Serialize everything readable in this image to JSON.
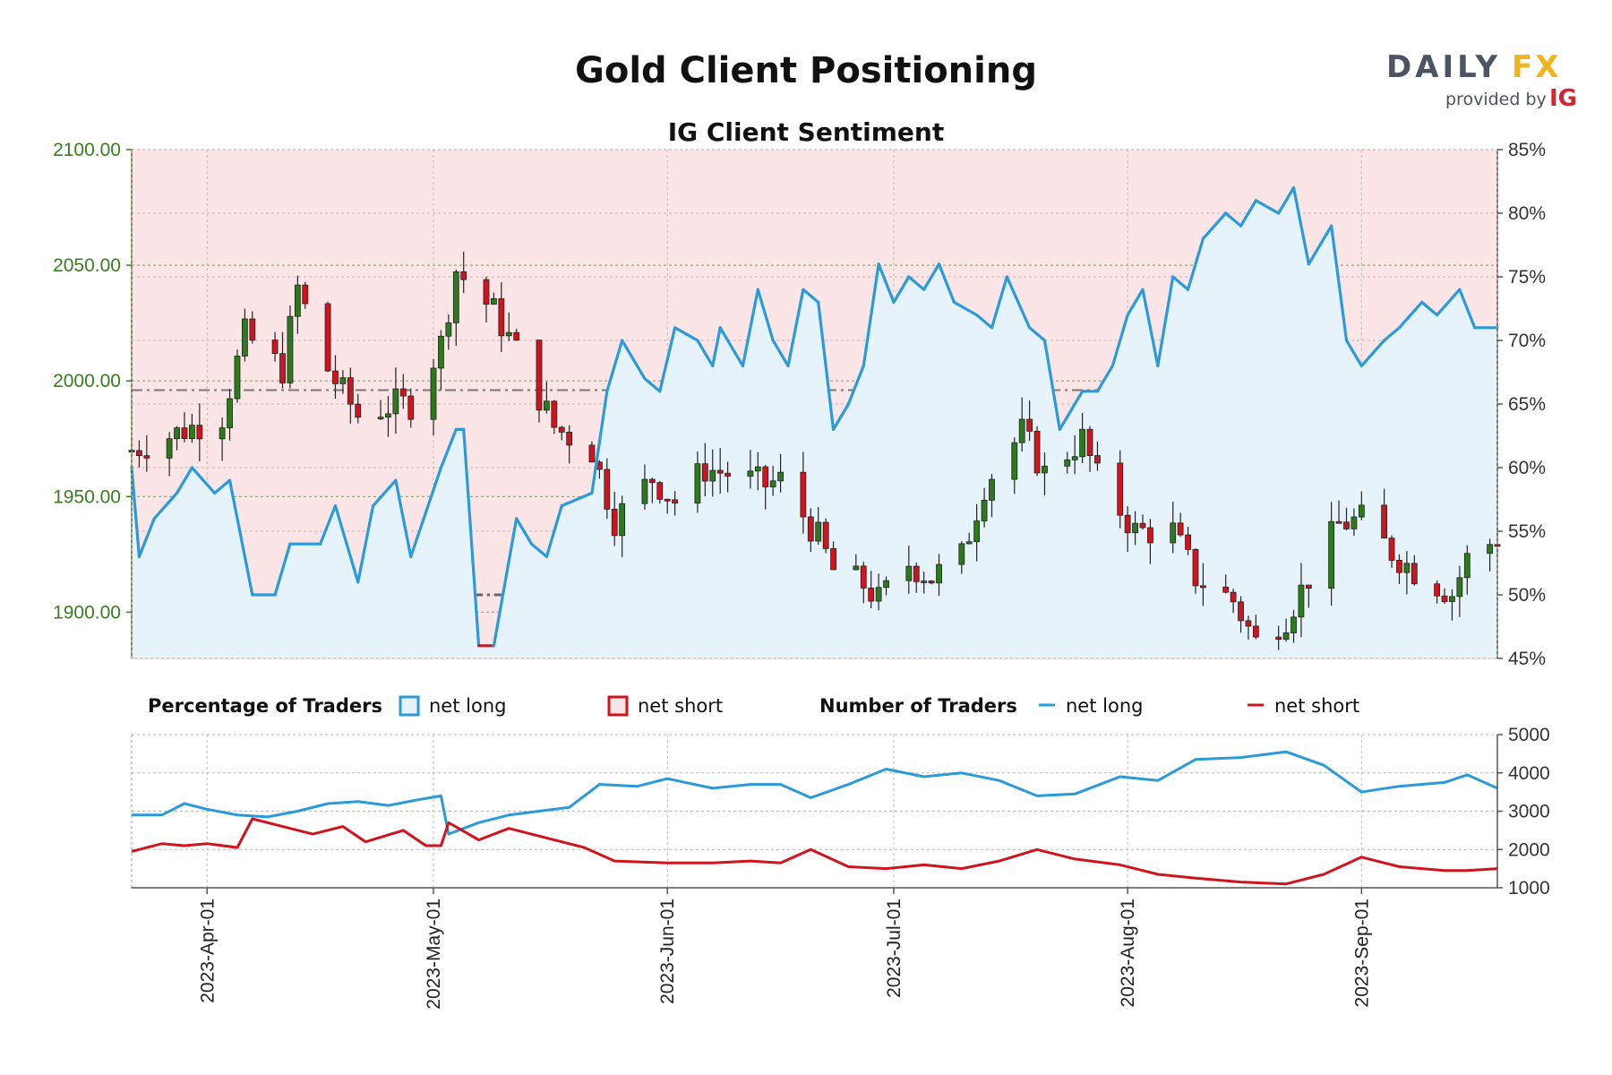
{
  "title": "Gold Client Positioning",
  "subtitle": "IG Client Sentiment",
  "logo": {
    "name": "DAILY",
    "accent": "FX",
    "provided_by": "provided by",
    "brand": "IG"
  },
  "legend": {
    "percentage_heading": "Percentage of Traders",
    "number_heading": "Number of Traders",
    "net_long": "net long",
    "net_short": "net short"
  },
  "colors": {
    "net_long": "#2b9ad8",
    "net_short": "#d0141e",
    "long_fill": "#e6f3fb",
    "short_fill": "#fbe5e6",
    "candle_up": "#2c7a1c",
    "candle_down": "#d0141e",
    "price_axis": "#3a7d1f"
  },
  "chart_data": [
    {
      "type": "candlestick",
      "title": "Gold Client Positioning",
      "subtitle": "IG Client Sentiment",
      "y_left": {
        "ticks": [
          "1900.00",
          "1950.00",
          "2000.00",
          "2050.00",
          "2100.00"
        ],
        "ylim": [
          1880,
          2100
        ]
      },
      "y_right": {
        "ticks": [
          "45%",
          "50%",
          "55%",
          "60%",
          "65%",
          "70%",
          "75%",
          "80%",
          "85%"
        ],
        "ylim": [
          45,
          85
        ]
      },
      "x": {
        "start": "2023-03-22",
        "end": "2023-09-19",
        "ticks": [
          "2023-Apr-01",
          "2023-May-01",
          "2023-Jun-01",
          "2023-Jul-01",
          "2023-Aug-01",
          "2023-Sep-01"
        ]
      },
      "reference_lines": {
        "price": 1996,
        "percent": 50
      },
      "price_close": [
        {
          "d": "2023-03-22",
          "c": 1970
        },
        {
          "d": "2023-04-03",
          "c": 1985
        },
        {
          "d": "2023-04-06",
          "c": 2020
        },
        {
          "d": "2023-04-11",
          "c": 2005
        },
        {
          "d": "2023-04-13",
          "c": 2040
        },
        {
          "d": "2023-04-17",
          "c": 2005
        },
        {
          "d": "2023-04-21",
          "c": 1985
        },
        {
          "d": "2023-04-26",
          "c": 1990
        },
        {
          "d": "2023-04-28",
          "c": 1990
        },
        {
          "d": "2023-05-02",
          "c": 2016
        },
        {
          "d": "2023-05-04",
          "c": 2048
        },
        {
          "d": "2023-05-09",
          "c": 2030
        },
        {
          "d": "2023-05-12",
          "c": 2013
        },
        {
          "d": "2023-05-17",
          "c": 1980
        },
        {
          "d": "2023-05-22",
          "c": 1970
        },
        {
          "d": "2023-05-25",
          "c": 1940
        },
        {
          "d": "2023-05-30",
          "c": 1958
        },
        {
          "d": "2023-06-02",
          "c": 1948
        },
        {
          "d": "2023-06-06",
          "c": 1962
        },
        {
          "d": "2023-06-09",
          "c": 1960
        },
        {
          "d": "2023-06-14",
          "c": 1955
        },
        {
          "d": "2023-06-16",
          "c": 1957
        },
        {
          "d": "2023-06-21",
          "c": 1932
        },
        {
          "d": "2023-06-23",
          "c": 1918
        },
        {
          "d": "2023-06-27",
          "c": 1912
        },
        {
          "d": "2023-06-29",
          "c": 1905
        },
        {
          "d": "2023-07-03",
          "c": 1921
        },
        {
          "d": "2023-07-06",
          "c": 1915
        },
        {
          "d": "2023-07-10",
          "c": 1924
        },
        {
          "d": "2023-07-13",
          "c": 1955
        },
        {
          "d": "2023-07-18",
          "c": 1978
        },
        {
          "d": "2023-07-21",
          "c": 1960
        },
        {
          "d": "2023-07-26",
          "c": 1975
        },
        {
          "d": "2023-07-28",
          "c": 1958
        },
        {
          "d": "2023-08-02",
          "c": 1935
        },
        {
          "d": "2023-08-07",
          "c": 1935
        },
        {
          "d": "2023-08-10",
          "c": 1915
        },
        {
          "d": "2023-08-15",
          "c": 1905
        },
        {
          "d": "2023-08-18",
          "c": 1887
        },
        {
          "d": "2023-08-22",
          "c": 1898
        },
        {
          "d": "2023-08-25",
          "c": 1915
        },
        {
          "d": "2023-08-29",
          "c": 1938
        },
        {
          "d": "2023-09-01",
          "c": 1940
        },
        {
          "d": "2023-09-05",
          "c": 1926
        },
        {
          "d": "2023-09-08",
          "c": 1918
        },
        {
          "d": "2023-09-13",
          "c": 1908
        },
        {
          "d": "2023-09-15",
          "c": 1923
        },
        {
          "d": "2023-09-19",
          "c": 1932
        }
      ],
      "net_long_percent": [
        {
          "d": "2023-03-22",
          "v": 60
        },
        {
          "d": "2023-03-23",
          "v": 53
        },
        {
          "d": "2023-03-25",
          "v": 56
        },
        {
          "d": "2023-03-28",
          "v": 58
        },
        {
          "d": "2023-03-30",
          "v": 60
        },
        {
          "d": "2023-04-02",
          "v": 58
        },
        {
          "d": "2023-04-04",
          "v": 59
        },
        {
          "d": "2023-04-07",
          "v": 50
        },
        {
          "d": "2023-04-10",
          "v": 50
        },
        {
          "d": "2023-04-12",
          "v": 54
        },
        {
          "d": "2023-04-16",
          "v": 54
        },
        {
          "d": "2023-04-18",
          "v": 57
        },
        {
          "d": "2023-04-21",
          "v": 51
        },
        {
          "d": "2023-04-23",
          "v": 57
        },
        {
          "d": "2023-04-26",
          "v": 59
        },
        {
          "d": "2023-04-28",
          "v": 53
        },
        {
          "d": "2023-05-02",
          "v": 60
        },
        {
          "d": "2023-05-04",
          "v": 63
        },
        {
          "d": "2023-05-05",
          "v": 63
        },
        {
          "d": "2023-05-07",
          "v": 46
        },
        {
          "d": "2023-05-09",
          "v": 46
        },
        {
          "d": "2023-05-12",
          "v": 56
        },
        {
          "d": "2023-05-14",
          "v": 54
        },
        {
          "d": "2023-05-16",
          "v": 53
        },
        {
          "d": "2023-05-18",
          "v": 57
        },
        {
          "d": "2023-05-22",
          "v": 58
        },
        {
          "d": "2023-05-24",
          "v": 66
        },
        {
          "d": "2023-05-26",
          "v": 70
        },
        {
          "d": "2023-05-29",
          "v": 67
        },
        {
          "d": "2023-05-31",
          "v": 66
        },
        {
          "d": "2023-06-02",
          "v": 71
        },
        {
          "d": "2023-06-05",
          "v": 70
        },
        {
          "d": "2023-06-07",
          "v": 68
        },
        {
          "d": "2023-06-08",
          "v": 71
        },
        {
          "d": "2023-06-11",
          "v": 68
        },
        {
          "d": "2023-06-13",
          "v": 74
        },
        {
          "d": "2023-06-15",
          "v": 70
        },
        {
          "d": "2023-06-17",
          "v": 68
        },
        {
          "d": "2023-06-19",
          "v": 74
        },
        {
          "d": "2023-06-21",
          "v": 73
        },
        {
          "d": "2023-06-23",
          "v": 63
        },
        {
          "d": "2023-06-25",
          "v": 65
        },
        {
          "d": "2023-06-27",
          "v": 68
        },
        {
          "d": "2023-06-29",
          "v": 76
        },
        {
          "d": "2023-07-01",
          "v": 73
        },
        {
          "d": "2023-07-03",
          "v": 75
        },
        {
          "d": "2023-07-05",
          "v": 74
        },
        {
          "d": "2023-07-07",
          "v": 76
        },
        {
          "d": "2023-07-09",
          "v": 73
        },
        {
          "d": "2023-07-12",
          "v": 72
        },
        {
          "d": "2023-07-14",
          "v": 71
        },
        {
          "d": "2023-07-16",
          "v": 75
        },
        {
          "d": "2023-07-19",
          "v": 71
        },
        {
          "d": "2023-07-21",
          "v": 70
        },
        {
          "d": "2023-07-23",
          "v": 63
        },
        {
          "d": "2023-07-26",
          "v": 66
        },
        {
          "d": "2023-07-28",
          "v": 66
        },
        {
          "d": "2023-07-30",
          "v": 68
        },
        {
          "d": "2023-08-01",
          "v": 72
        },
        {
          "d": "2023-08-03",
          "v": 74
        },
        {
          "d": "2023-08-05",
          "v": 68
        },
        {
          "d": "2023-08-07",
          "v": 75
        },
        {
          "d": "2023-08-09",
          "v": 74
        },
        {
          "d": "2023-08-11",
          "v": 78
        },
        {
          "d": "2023-08-14",
          "v": 80
        },
        {
          "d": "2023-08-16",
          "v": 79
        },
        {
          "d": "2023-08-18",
          "v": 81
        },
        {
          "d": "2023-08-21",
          "v": 80
        },
        {
          "d": "2023-08-23",
          "v": 82
        },
        {
          "d": "2023-08-25",
          "v": 76
        },
        {
          "d": "2023-08-28",
          "v": 79
        },
        {
          "d": "2023-08-30",
          "v": 70
        },
        {
          "d": "2023-09-01",
          "v": 68
        },
        {
          "d": "2023-09-04",
          "v": 70
        },
        {
          "d": "2023-09-06",
          "v": 71
        },
        {
          "d": "2023-09-09",
          "v": 73
        },
        {
          "d": "2023-09-11",
          "v": 72
        },
        {
          "d": "2023-09-14",
          "v": 74
        },
        {
          "d": "2023-09-16",
          "v": 71
        },
        {
          "d": "2023-09-19",
          "v": 71
        }
      ]
    },
    {
      "type": "line",
      "y": {
        "ticks": [
          "1000",
          "2000",
          "3000",
          "4000",
          "5000"
        ],
        "ylim": [
          1000,
          5000
        ]
      },
      "series": [
        {
          "name": "net long",
          "points": [
            {
              "d": "2023-03-22",
              "v": 2900
            },
            {
              "d": "2023-03-26",
              "v": 2900
            },
            {
              "d": "2023-03-29",
              "v": 3200
            },
            {
              "d": "2023-04-01",
              "v": 3050
            },
            {
              "d": "2023-04-05",
              "v": 2900
            },
            {
              "d": "2023-04-09",
              "v": 2850
            },
            {
              "d": "2023-04-13",
              "v": 3000
            },
            {
              "d": "2023-04-17",
              "v": 3200
            },
            {
              "d": "2023-04-21",
              "v": 3250
            },
            {
              "d": "2023-04-25",
              "v": 3150
            },
            {
              "d": "2023-04-29",
              "v": 3300
            },
            {
              "d": "2023-05-02",
              "v": 3400
            },
            {
              "d": "2023-05-03",
              "v": 2400
            },
            {
              "d": "2023-05-07",
              "v": 2700
            },
            {
              "d": "2023-05-11",
              "v": 2900
            },
            {
              "d": "2023-05-15",
              "v": 3000
            },
            {
              "d": "2023-05-19",
              "v": 3100
            },
            {
              "d": "2023-05-23",
              "v": 3700
            },
            {
              "d": "2023-05-28",
              "v": 3650
            },
            {
              "d": "2023-06-01",
              "v": 3850
            },
            {
              "d": "2023-06-07",
              "v": 3600
            },
            {
              "d": "2023-06-12",
              "v": 3700
            },
            {
              "d": "2023-06-16",
              "v": 3700
            },
            {
              "d": "2023-06-20",
              "v": 3350
            },
            {
              "d": "2023-06-25",
              "v": 3700
            },
            {
              "d": "2023-06-30",
              "v": 4100
            },
            {
              "d": "2023-07-05",
              "v": 3900
            },
            {
              "d": "2023-07-10",
              "v": 4000
            },
            {
              "d": "2023-07-15",
              "v": 3800
            },
            {
              "d": "2023-07-20",
              "v": 3400
            },
            {
              "d": "2023-07-25",
              "v": 3450
            },
            {
              "d": "2023-07-31",
              "v": 3900
            },
            {
              "d": "2023-08-05",
              "v": 3800
            },
            {
              "d": "2023-08-10",
              "v": 4350
            },
            {
              "d": "2023-08-16",
              "v": 4400
            },
            {
              "d": "2023-08-22",
              "v": 4550
            },
            {
              "d": "2023-08-27",
              "v": 4200
            },
            {
              "d": "2023-09-01",
              "v": 3500
            },
            {
              "d": "2023-09-06",
              "v": 3650
            },
            {
              "d": "2023-09-12",
              "v": 3750
            },
            {
              "d": "2023-09-15",
              "v": 3950
            },
            {
              "d": "2023-09-19",
              "v": 3600
            }
          ]
        },
        {
          "name": "net short",
          "points": [
            {
              "d": "2023-03-22",
              "v": 1950
            },
            {
              "d": "2023-03-26",
              "v": 2150
            },
            {
              "d": "2023-03-29",
              "v": 2100
            },
            {
              "d": "2023-04-01",
              "v": 2150
            },
            {
              "d": "2023-04-05",
              "v": 2050
            },
            {
              "d": "2023-04-07",
              "v": 2800
            },
            {
              "d": "2023-04-11",
              "v": 2600
            },
            {
              "d": "2023-04-15",
              "v": 2400
            },
            {
              "d": "2023-04-19",
              "v": 2600
            },
            {
              "d": "2023-04-22",
              "v": 2200
            },
            {
              "d": "2023-04-27",
              "v": 2500
            },
            {
              "d": "2023-04-30",
              "v": 2100
            },
            {
              "d": "2023-05-02",
              "v": 2100
            },
            {
              "d": "2023-05-03",
              "v": 2700
            },
            {
              "d": "2023-05-07",
              "v": 2250
            },
            {
              "d": "2023-05-11",
              "v": 2550
            },
            {
              "d": "2023-05-16",
              "v": 2300
            },
            {
              "d": "2023-05-21",
              "v": 2050
            },
            {
              "d": "2023-05-25",
              "v": 1700
            },
            {
              "d": "2023-06-01",
              "v": 1650
            },
            {
              "d": "2023-06-07",
              "v": 1650
            },
            {
              "d": "2023-06-12",
              "v": 1700
            },
            {
              "d": "2023-06-16",
              "v": 1650
            },
            {
              "d": "2023-06-20",
              "v": 2000
            },
            {
              "d": "2023-06-25",
              "v": 1550
            },
            {
              "d": "2023-06-30",
              "v": 1500
            },
            {
              "d": "2023-07-05",
              "v": 1600
            },
            {
              "d": "2023-07-10",
              "v": 1500
            },
            {
              "d": "2023-07-15",
              "v": 1700
            },
            {
              "d": "2023-07-20",
              "v": 2000
            },
            {
              "d": "2023-07-25",
              "v": 1750
            },
            {
              "d": "2023-07-31",
              "v": 1600
            },
            {
              "d": "2023-08-05",
              "v": 1350
            },
            {
              "d": "2023-08-10",
              "v": 1250
            },
            {
              "d": "2023-08-16",
              "v": 1150
            },
            {
              "d": "2023-08-22",
              "v": 1100
            },
            {
              "d": "2023-08-27",
              "v": 1350
            },
            {
              "d": "2023-09-01",
              "v": 1800
            },
            {
              "d": "2023-09-06",
              "v": 1550
            },
            {
              "d": "2023-09-12",
              "v": 1450
            },
            {
              "d": "2023-09-15",
              "v": 1450
            },
            {
              "d": "2023-09-19",
              "v": 1500
            }
          ]
        }
      ]
    }
  ]
}
